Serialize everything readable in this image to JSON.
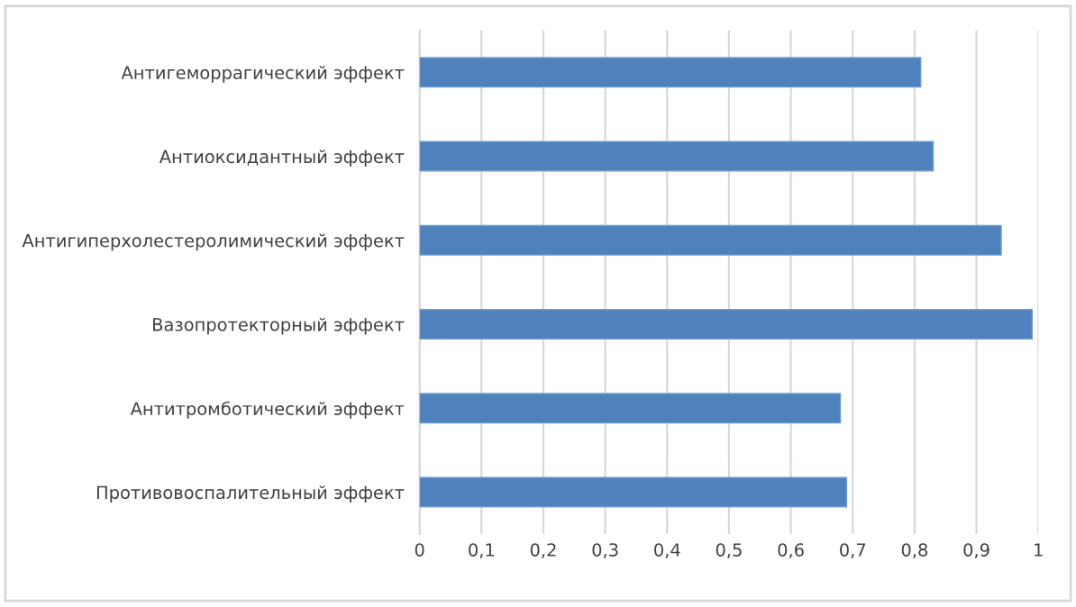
{
  "chart_data": {
    "type": "bar",
    "orientation": "horizontal",
    "categories": [
      "Антигеморрагический эффект",
      "Антиоксидантный эффект",
      "Антигиперхолестеролимический эффект",
      "Вазопротекторный эффект",
      "Антитромботический эффект",
      "Противовоспалительный эффект"
    ],
    "values": [
      0.81,
      0.83,
      0.94,
      0.99,
      0.68,
      0.69
    ],
    "color": "#4f81bd",
    "xlim": [
      0,
      1
    ],
    "xticks": [
      0,
      {
        "value": 0.1,
        "label": "0,1"
      },
      {
        "value": 0.2,
        "label": "0,2"
      },
      {
        "value": 0.3,
        "label": "0,3"
      },
      {
        "value": 0.4,
        "label": "0,4"
      },
      {
        "value": 0.5,
        "label": "0,5"
      },
      {
        "value": 0.6,
        "label": "0,6"
      },
      {
        "value": 0.7,
        "label": "0,7"
      },
      {
        "value": 0.8,
        "label": "0,8"
      },
      {
        "value": 0.9,
        "label": "0,9"
      },
      1
    ],
    "grid": "x",
    "legend": false
  }
}
